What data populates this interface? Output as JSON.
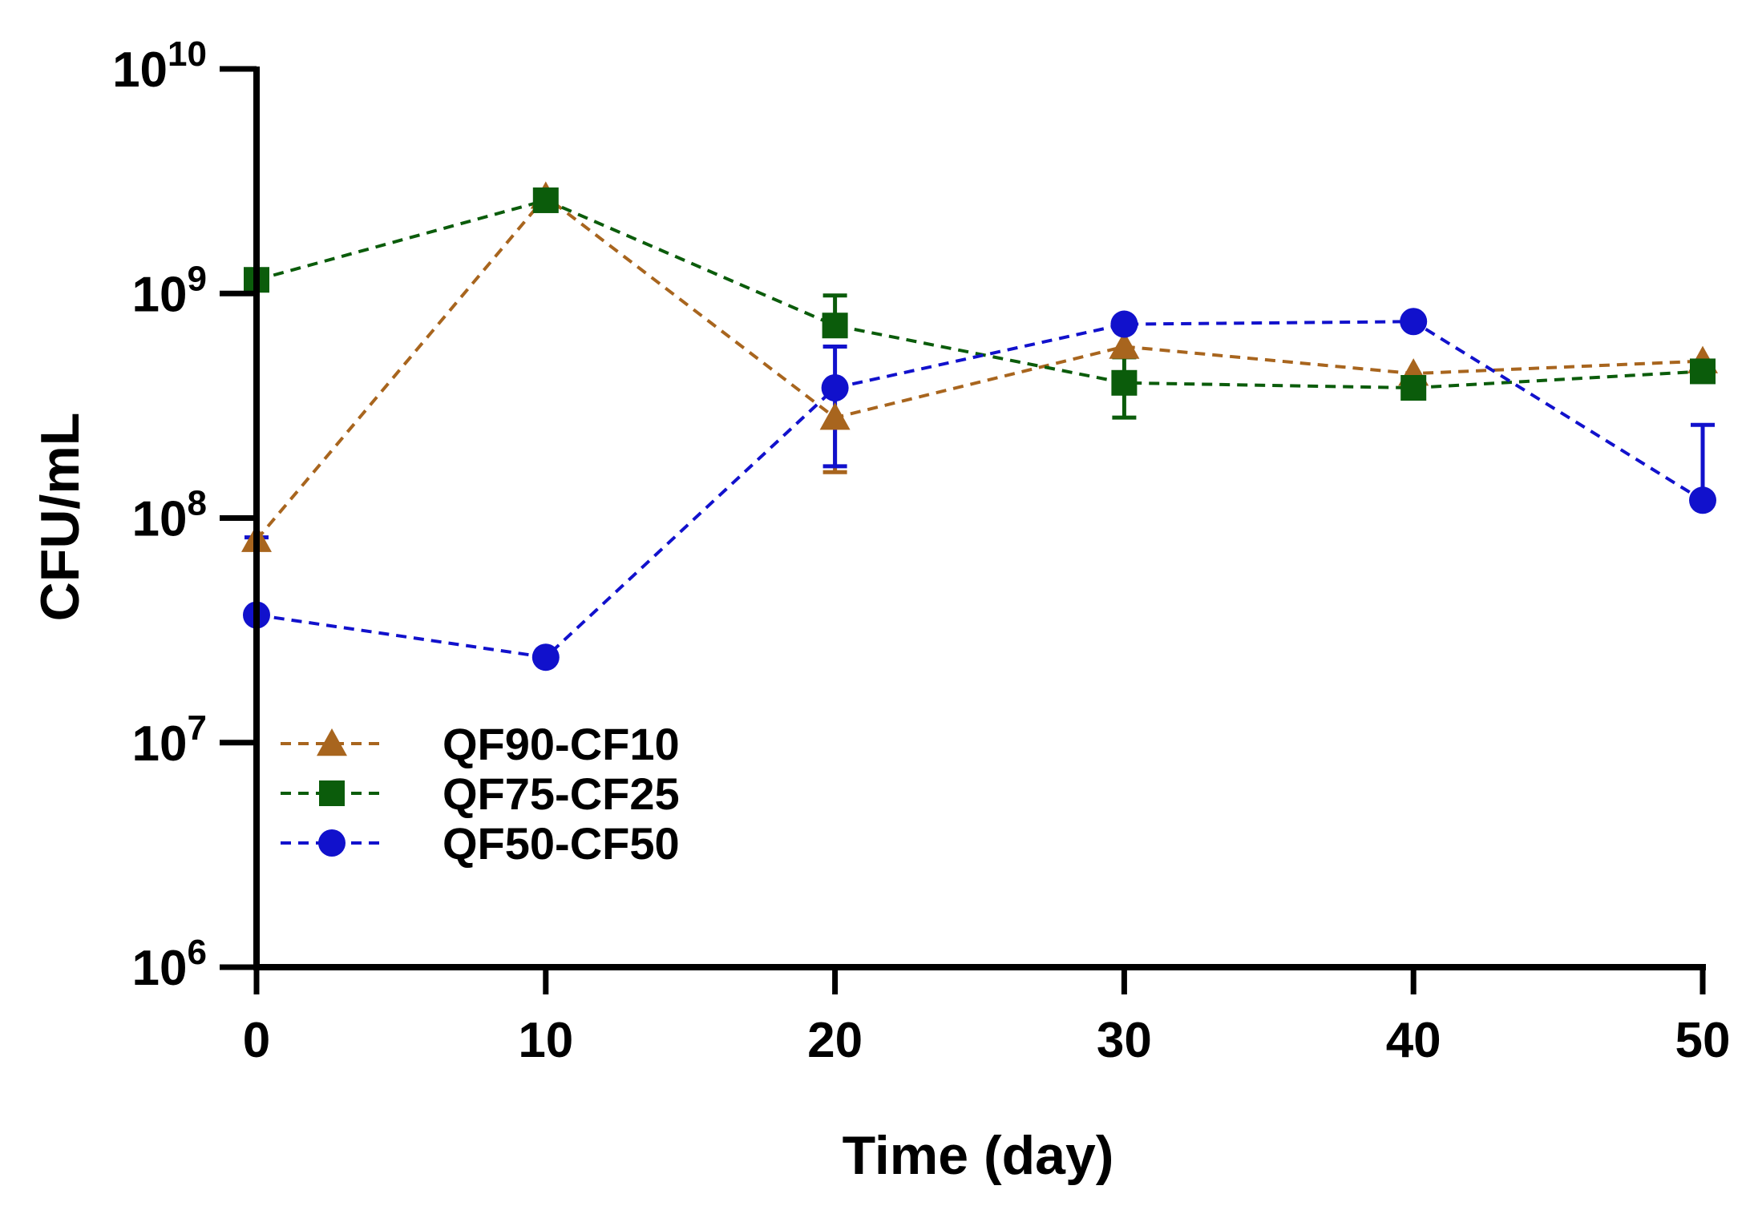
{
  "chart_data": {
    "type": "line",
    "title": "",
    "xlabel": "Time (day)",
    "ylabel": "CFU/mL",
    "xlim": [
      0,
      50
    ],
    "ylim": [
      1000000,
      10000000000
    ],
    "yscale": "log",
    "x_ticks": [
      0,
      10,
      20,
      30,
      40,
      50
    ],
    "x_tick_labels": [
      "0",
      "10",
      "20",
      "30",
      "40",
      "50"
    ],
    "y_ticks": [
      {
        "value": 1000000,
        "base": "10",
        "exp": "6"
      },
      {
        "value": 10000000,
        "base": "10",
        "exp": "7"
      },
      {
        "value": 100000000,
        "base": "10",
        "exp": "8"
      },
      {
        "value": 1000000000,
        "base": "10",
        "exp": "9"
      },
      {
        "value": 10000000000,
        "base": "10",
        "exp": "10"
      }
    ],
    "legend_position": "lower-left",
    "series": [
      {
        "name": "QF90-CF10",
        "color": "#A8651E",
        "marker": "triangle",
        "x": [
          0,
          10,
          20,
          30,
          40,
          50
        ],
        "values": [
          80000000,
          2700000000,
          280000000,
          580000000,
          440000000,
          500000000
        ],
        "err_low": [
          null,
          null,
          160000000,
          null,
          null,
          null
        ],
        "err_high": [
          null,
          null,
          null,
          null,
          null,
          null
        ]
      },
      {
        "name": "QF75-CF25",
        "color": "#0B5C0B",
        "marker": "square",
        "x": [
          0,
          10,
          20,
          30,
          40,
          50
        ],
        "values": [
          1150000000,
          2600000000,
          720000000,
          400000000,
          380000000,
          450000000
        ],
        "err_low": [
          null,
          null,
          null,
          280000000,
          null,
          null
        ],
        "err_high": [
          null,
          null,
          980000000,
          520000000,
          null,
          null
        ]
      },
      {
        "name": "QF50-CF50",
        "color": "#1111CC",
        "marker": "circle",
        "x": [
          0,
          10,
          20,
          30,
          40,
          50
        ],
        "values": [
          37000000,
          24000000,
          380000000,
          730000000,
          750000000,
          120000000
        ],
        "err_low": [
          null,
          null,
          170000000,
          null,
          null,
          null
        ],
        "err_high": [
          82000000,
          null,
          580000000,
          null,
          null,
          260000000
        ]
      }
    ]
  }
}
